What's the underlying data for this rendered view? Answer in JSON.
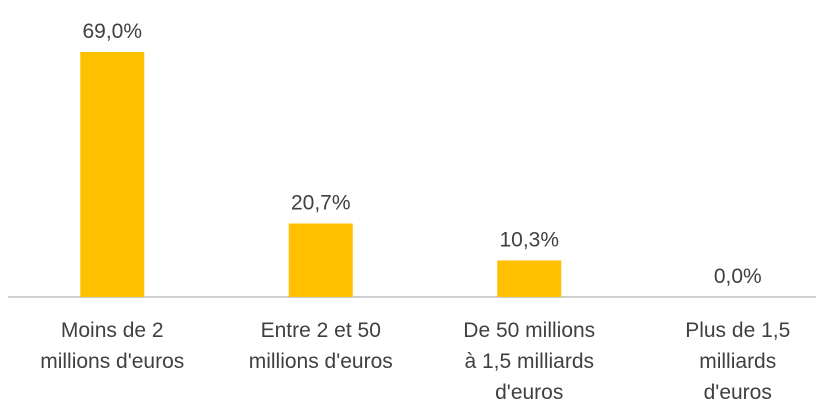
{
  "chart_data": {
    "type": "bar",
    "categories": [
      "Moins de 2\nmillions d'euros",
      "Entre 2 et 50\nmillions d'euros",
      "De 50 millions\nà 1,5 milliards\nd'euros",
      "Plus de 1,5\nmilliards\nd'euros"
    ],
    "values": [
      69.0,
      20.7,
      10.3,
      0.0
    ],
    "value_labels": [
      "69,0%",
      "20,7%",
      "10,3%",
      "0,0%"
    ],
    "color": "#FFC000"
  }
}
